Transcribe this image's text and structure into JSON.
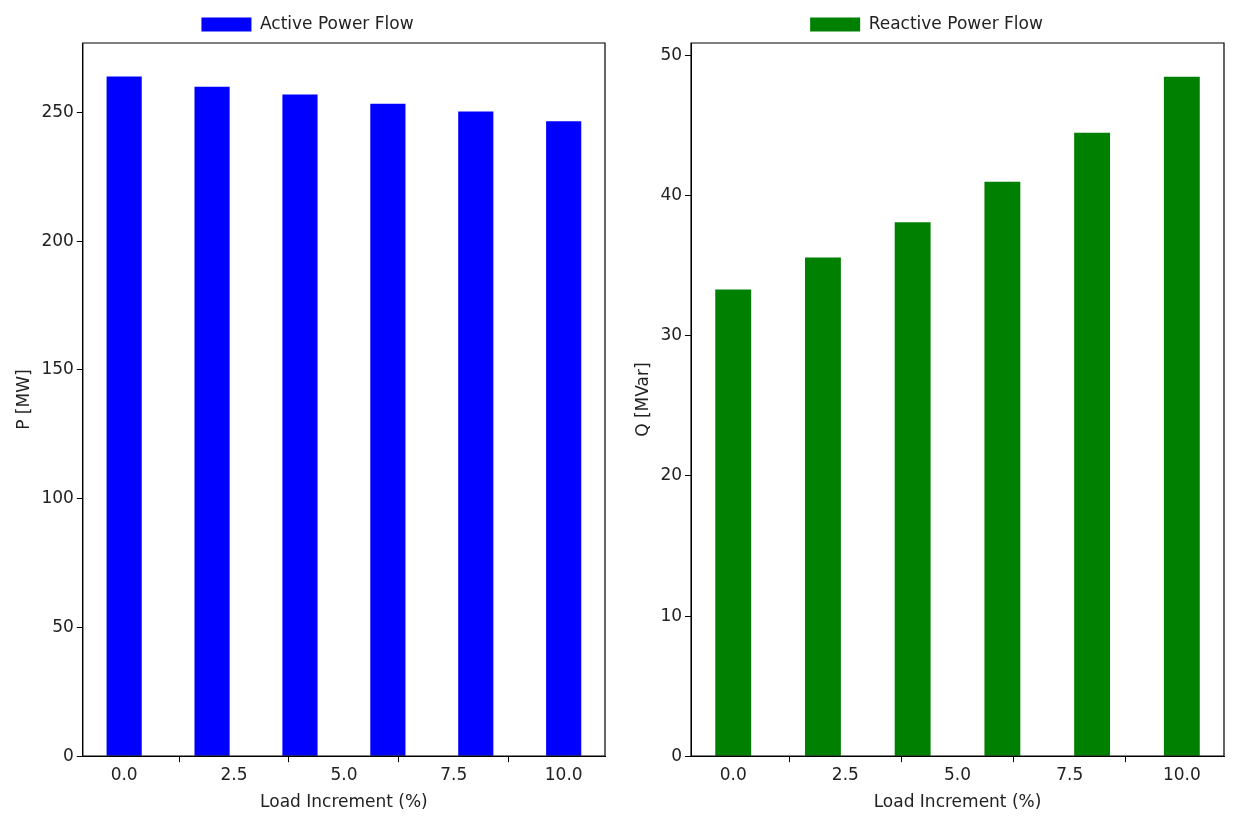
{
  "chart_data": [
    {
      "type": "bar",
      "x": [
        0,
        2,
        4,
        6,
        8,
        10
      ],
      "xlabel": "Load Increment (%)",
      "ylabel": "P [MW]",
      "series": [
        {
          "name": "Active Power Flow",
          "color": "#0000ff",
          "values": [
            264,
            260,
            257,
            253.4,
            250.4,
            246.6
          ]
        }
      ],
      "xlim": [
        -0.94,
        10.94
      ],
      "xticks": [
        {
          "value": 0,
          "label": "0.0"
        },
        {
          "value": 2.5,
          "label": "2.5"
        },
        {
          "value": 5,
          "label": "5.0"
        },
        {
          "value": 7.5,
          "label": "7.5"
        },
        {
          "value": 10,
          "label": "10.0"
        }
      ],
      "ylim": [
        0,
        277
      ],
      "yticks": [
        0,
        50,
        100,
        150,
        200,
        250
      ],
      "grid": false,
      "legend": "top"
    },
    {
      "type": "bar",
      "x": [
        0,
        2,
        4,
        6,
        8,
        10
      ],
      "xlabel": "Load Increment (%)",
      "ylabel": "Q [MVar]",
      "series": [
        {
          "name": "Reactive Power Flow",
          "color": "#008000",
          "values": [
            33.3,
            35.6,
            38.1,
            41.0,
            44.5,
            48.5
          ]
        }
      ],
      "xlim": [
        -0.94,
        10.94
      ],
      "xticks": [
        {
          "value": 0,
          "label": "0.0"
        },
        {
          "value": 2.5,
          "label": "2.5"
        },
        {
          "value": 5,
          "label": "5.0"
        },
        {
          "value": 7.5,
          "label": "7.5"
        },
        {
          "value": 10,
          "label": "10.0"
        }
      ],
      "ylim": [
        0,
        50.9
      ],
      "yticks": [
        0,
        10,
        20,
        30,
        40,
        50
      ],
      "grid": false,
      "legend": "top"
    }
  ]
}
